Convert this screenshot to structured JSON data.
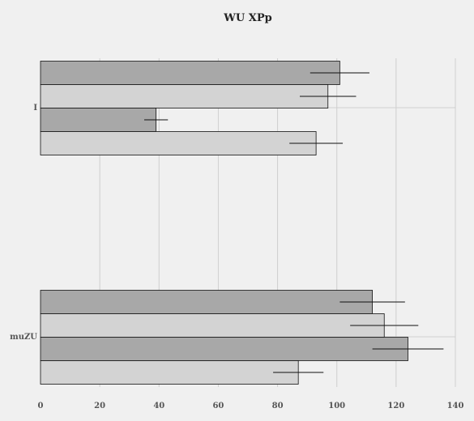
{
  "chart_data": {
    "type": "bar",
    "orientation": "horizontal",
    "title": "WU XPp",
    "xlabel": "",
    "ylabel": "",
    "xlim": [
      0,
      140
    ],
    "x_ticks": [
      "0",
      "20",
      "40",
      "60",
      "80",
      "100",
      "120",
      "140"
    ],
    "grid": true,
    "categories": [
      "I",
      "muZU"
    ],
    "series": [
      {
        "color": "#a8a8a8",
        "values": [
          101,
          112
        ],
        "errors": [
          10,
          11
        ]
      },
      {
        "color": "#d3d3d3",
        "values": [
          97,
          116
        ],
        "errors": [
          9.5,
          11.5
        ]
      },
      {
        "color": "#a8a8a8",
        "values": [
          39,
          124
        ],
        "errors": [
          4,
          12
        ]
      },
      {
        "color": "#d3d3d3",
        "values": [
          93,
          87
        ],
        "errors": [
          9,
          8.5
        ]
      }
    ]
  }
}
